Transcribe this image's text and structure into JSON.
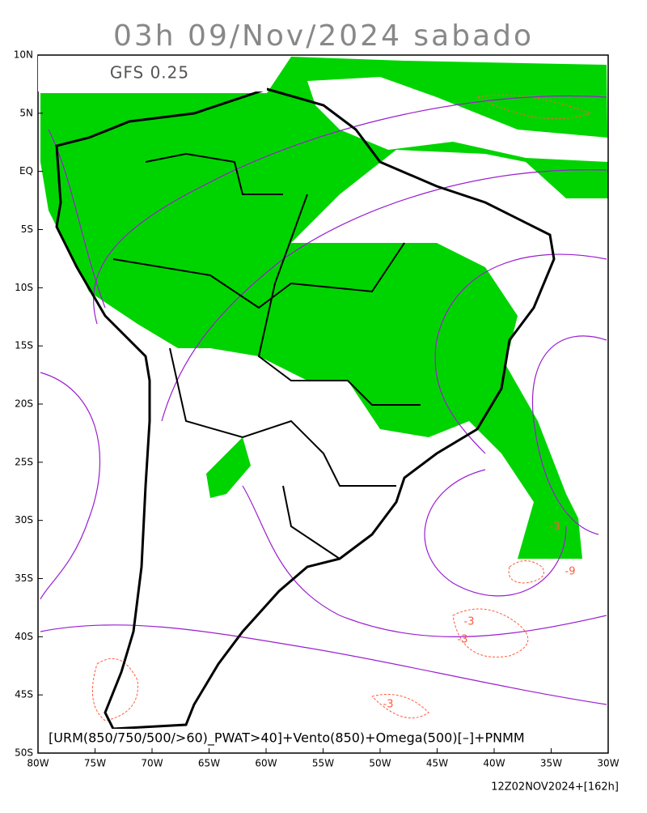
{
  "title": "03h 09/Nov/2024 sabado",
  "model_label": "GFS 0.25",
  "legend_text": "[URM(850/750/500/>60)_PWAT>40]+Vento(850)+Omega(500)[–]+PNMM",
  "footer": "12Z02NOV2024+[162h]",
  "lon_ticks": [
    {
      "value": -80,
      "label": "80W"
    },
    {
      "value": -75,
      "label": "75W"
    },
    {
      "value": -70,
      "label": "70W"
    },
    {
      "value": -65,
      "label": "65W"
    },
    {
      "value": -60,
      "label": "60W"
    },
    {
      "value": -55,
      "label": "55W"
    },
    {
      "value": -50,
      "label": "50W"
    },
    {
      "value": -45,
      "label": "45W"
    },
    {
      "value": -40,
      "label": "40W"
    },
    {
      "value": -35,
      "label": "35W"
    },
    {
      "value": -30,
      "label": "30W"
    }
  ],
  "lat_ticks": [
    {
      "value": 10,
      "label": "10N"
    },
    {
      "value": 5,
      "label": "5N"
    },
    {
      "value": 0,
      "label": "EQ"
    },
    {
      "value": -5,
      "label": "5S"
    },
    {
      "value": -10,
      "label": "10S"
    },
    {
      "value": -15,
      "label": "15S"
    },
    {
      "value": -20,
      "label": "20S"
    },
    {
      "value": -25,
      "label": "25S"
    },
    {
      "value": -30,
      "label": "30S"
    },
    {
      "value": -35,
      "label": "35S"
    },
    {
      "value": -40,
      "label": "40S"
    },
    {
      "value": -45,
      "label": "45S"
    },
    {
      "value": -50,
      "label": "50S"
    }
  ],
  "contour_labels": [
    "-3",
    "-9",
    "-3",
    "-3",
    "-3"
  ]
}
